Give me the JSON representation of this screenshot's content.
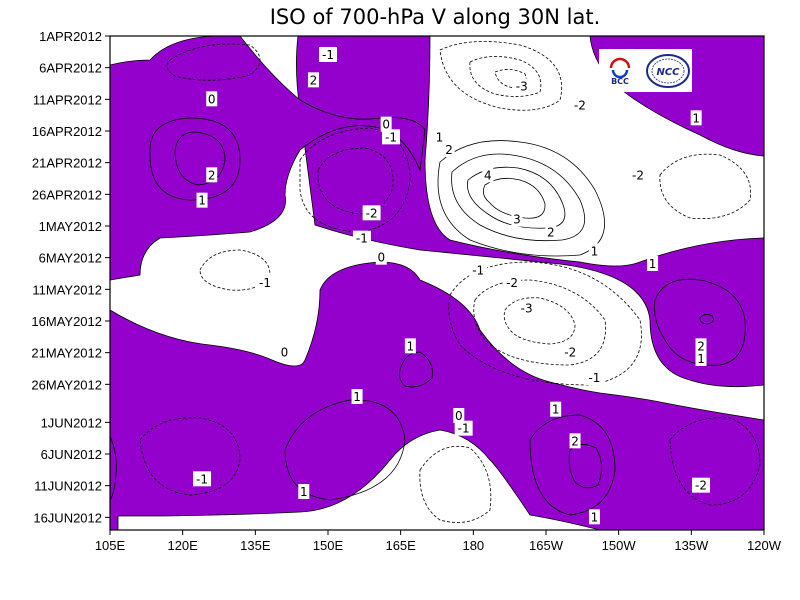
{
  "chart_data": {
    "type": "heatmap",
    "title": "ISO of 700-hPa V along 30N lat.",
    "x_tick_labels": [
      "105E",
      "120E",
      "135E",
      "150E",
      "165E",
      "180",
      "165W",
      "150W",
      "135W",
      "120W"
    ],
    "y_tick_labels": [
      "1APR2012",
      "6APR2012",
      "11APR2012",
      "16APR2012",
      "21APR2012",
      "26APR2012",
      "1MAY2012",
      "6MAY2012",
      "11MAY2012",
      "16MAY2012",
      "21MAY2012",
      "26MAY2012",
      "1JUN2012",
      "6JUN2012",
      "11JUN2012",
      "16JUN2012"
    ],
    "xlim": [
      105,
      240
    ],
    "contour_levels": [
      -3,
      -2,
      -1,
      0,
      1,
      2,
      3,
      4
    ],
    "fill_color": "#9400cc",
    "fill_rule": "V > 0 shaded",
    "negative_contours": "dashed",
    "contour_labels": [
      {
        "lon": 150,
        "date": "4APR2012",
        "text": "-1"
      },
      {
        "lon": 126,
        "date": "11APR2012",
        "text": "0"
      },
      {
        "lon": 126,
        "date": "23APR2012",
        "text": "2"
      },
      {
        "lon": 124,
        "date": "27APR2012",
        "text": "1"
      },
      {
        "lon": 147,
        "date": "8APR2012",
        "text": "2"
      },
      {
        "lon": 162,
        "date": "15APR2012",
        "text": "0"
      },
      {
        "lon": 163,
        "date": "17APR2012",
        "text": "-1"
      },
      {
        "lon": 159,
        "date": "29APR2012",
        "text": "-2"
      },
      {
        "lon": 157,
        "date": "3MAY2012",
        "text": "-1"
      },
      {
        "lon": 190,
        "date": "9APR2012",
        "text": "-3"
      },
      {
        "lon": 202,
        "date": "12APR2012",
        "text": "-2"
      },
      {
        "lon": 226,
        "date": "14APR2012",
        "text": "1"
      },
      {
        "lon": 214,
        "date": "23APR2012",
        "text": "-2"
      },
      {
        "lon": 173,
        "date": "17APR2012",
        "text": "1"
      },
      {
        "lon": 175,
        "date": "19APR2012",
        "text": "2"
      },
      {
        "lon": 183,
        "date": "23APR2012",
        "text": "4"
      },
      {
        "lon": 189,
        "date": "30APR2012",
        "text": "3"
      },
      {
        "lon": 196,
        "date": "2MAY2012",
        "text": "2"
      },
      {
        "lon": 205,
        "date": "5MAY2012",
        "text": "1"
      },
      {
        "lon": 161,
        "date": "6MAY2012",
        "text": "0"
      },
      {
        "lon": 181,
        "date": "8MAY2012",
        "text": "-1"
      },
      {
        "lon": 188,
        "date": "10MAY2012",
        "text": "-2"
      },
      {
        "lon": 191,
        "date": "14MAY2012",
        "text": "-3"
      },
      {
        "lon": 200,
        "date": "21MAY2012",
        "text": "-2"
      },
      {
        "lon": 205,
        "date": "25MAY2012",
        "text": "-1"
      },
      {
        "lon": 217,
        "date": "7MAY2012",
        "text": "1"
      },
      {
        "lon": 137,
        "date": "10MAY2012",
        "text": "-1"
      },
      {
        "lon": 227,
        "date": "20MAY2012",
        "text": "2"
      },
      {
        "lon": 227,
        "date": "22MAY2012",
        "text": "1"
      },
      {
        "lon": 141,
        "date": "21MAY2012",
        "text": "0"
      },
      {
        "lon": 167,
        "date": "20MAY2012",
        "text": "1"
      },
      {
        "lon": 156,
        "date": "28MAY2012",
        "text": "1"
      },
      {
        "lon": 177,
        "date": "31MAY2012",
        "text": "0"
      },
      {
        "lon": 178,
        "date": "2JUN2012",
        "text": "-1"
      },
      {
        "lon": 197,
        "date": "30MAY2012",
        "text": "1"
      },
      {
        "lon": 201,
        "date": "4JUN2012",
        "text": "2"
      },
      {
        "lon": 124,
        "date": "10JUN2012",
        "text": "-1"
      },
      {
        "lon": 227,
        "date": "11JUN2012",
        "text": "-2"
      },
      {
        "lon": 145,
        "date": "12JUN2012",
        "text": "1"
      },
      {
        "lon": 205,
        "date": "16JUN2012",
        "text": "1"
      }
    ]
  },
  "logos": [
    {
      "name": "BCC",
      "text": "BCC"
    },
    {
      "name": "NCC",
      "text": "NCC"
    }
  ]
}
